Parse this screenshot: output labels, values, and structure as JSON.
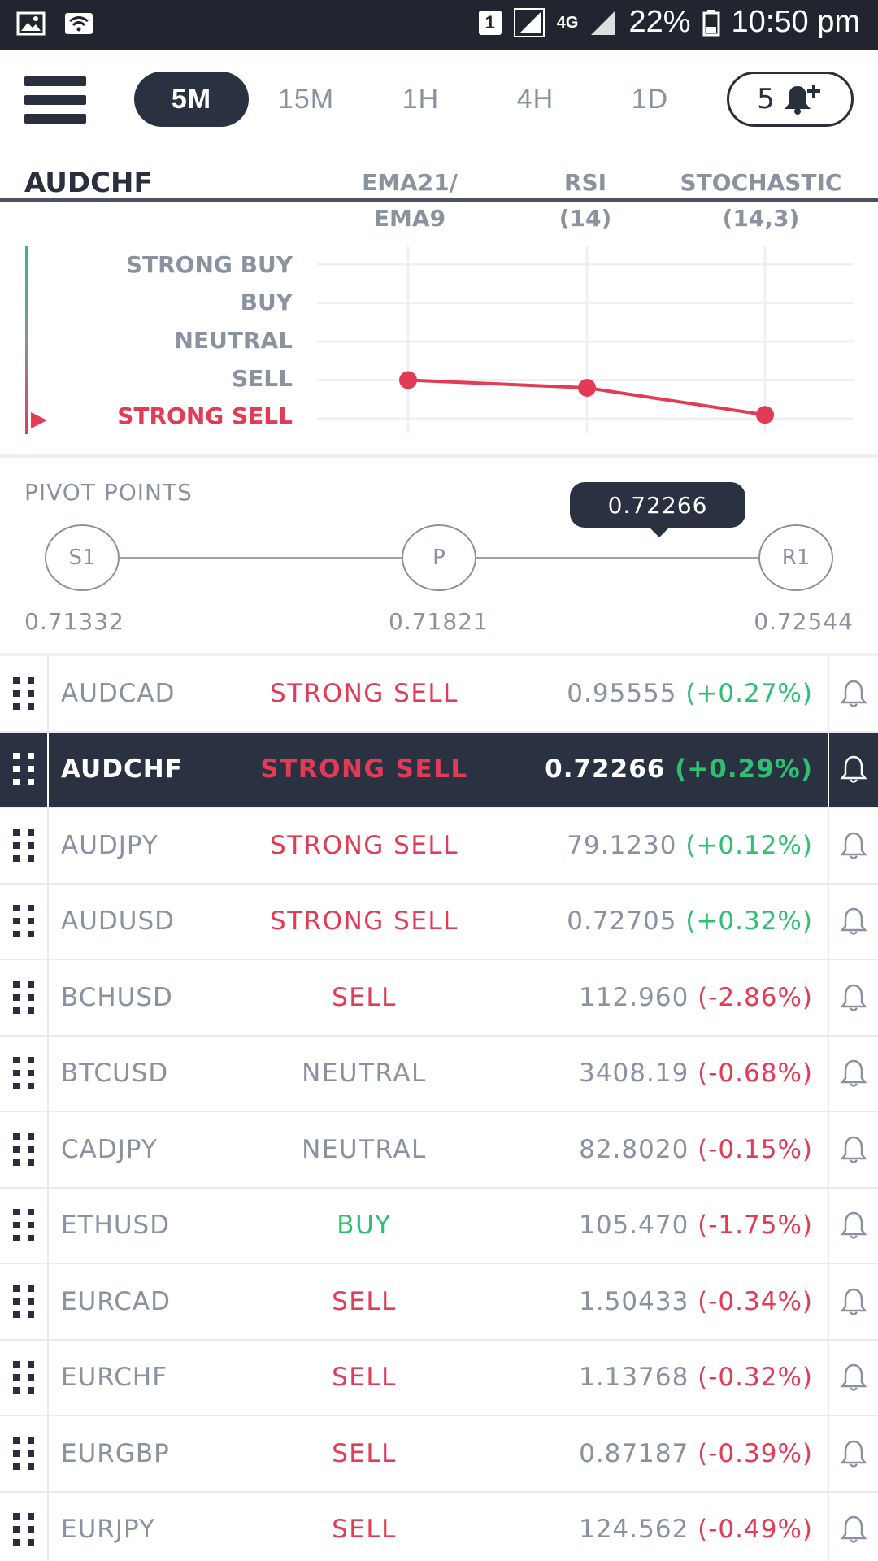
{
  "status_bar": {
    "sim_badge": "1",
    "network": "4G",
    "battery": "22%",
    "time": "10:50 pm"
  },
  "toolbar": {
    "tabs": [
      {
        "label": "5M",
        "active": true
      },
      {
        "label": "15M",
        "active": false
      },
      {
        "label": "1H",
        "active": false
      },
      {
        "label": "4H",
        "active": false
      },
      {
        "label": "1D",
        "active": false
      }
    ],
    "alert_count": "5"
  },
  "summary": {
    "symbol": "AUDCHF",
    "columns": [
      {
        "line1": "EMA21/",
        "line2": "EMA9"
      },
      {
        "line1": "RSI",
        "line2": "(14)"
      },
      {
        "line1": "STOCHASTIC",
        "line2": "(14,3)"
      }
    ],
    "rating_labels": [
      "STRONG BUY",
      "BUY",
      "NEUTRAL",
      "SELL",
      "STRONG SELL"
    ],
    "current_rating": "STRONG SELL"
  },
  "chart_data": {
    "type": "line",
    "categories": [
      "EMA21/EMA9",
      "RSI (14)",
      "STOCHASTIC (14,3)"
    ],
    "y_scale": [
      "STRONG SELL",
      "SELL",
      "NEUTRAL",
      "BUY",
      "STRONG BUY"
    ],
    "series": [
      {
        "values": [
          1.0,
          0.8,
          0.1
        ]
      }
    ],
    "ylim": [
      0,
      4
    ],
    "grid": true
  },
  "pivot": {
    "title": "PIVOT POINTS",
    "nodes": [
      {
        "label": "S1",
        "value": "0.71332"
      },
      {
        "label": "P",
        "value": "0.71821"
      },
      {
        "label": "R1",
        "value": "0.72544"
      }
    ],
    "current_price": "0.72266"
  },
  "watchlist": [
    {
      "symbol": "AUDCAD",
      "signal": "STRONG SELL",
      "signal_type": "strong-sell",
      "price": "0.95555",
      "change": "(+0.27%)",
      "dir": "up",
      "selected": false
    },
    {
      "symbol": "AUDCHF",
      "signal": "STRONG SELL",
      "signal_type": "strong-sell",
      "price": "0.72266",
      "change": "(+0.29%)",
      "dir": "up",
      "selected": true
    },
    {
      "symbol": "AUDJPY",
      "signal": "STRONG SELL",
      "signal_type": "strong-sell",
      "price": "79.1230",
      "change": "(+0.12%)",
      "dir": "up",
      "selected": false
    },
    {
      "symbol": "AUDUSD",
      "signal": "STRONG SELL",
      "signal_type": "strong-sell",
      "price": "0.72705",
      "change": "(+0.32%)",
      "dir": "up",
      "selected": false
    },
    {
      "symbol": "BCHUSD",
      "signal": "SELL",
      "signal_type": "sell",
      "price": "112.960",
      "change": "(-2.86%)",
      "dir": "down",
      "selected": false
    },
    {
      "symbol": "BTCUSD",
      "signal": "NEUTRAL",
      "signal_type": "neutral",
      "price": "3408.19",
      "change": "(-0.68%)",
      "dir": "down",
      "selected": false
    },
    {
      "symbol": "CADJPY",
      "signal": "NEUTRAL",
      "signal_type": "neutral",
      "price": "82.8020",
      "change": "(-0.15%)",
      "dir": "down",
      "selected": false
    },
    {
      "symbol": "ETHUSD",
      "signal": "BUY",
      "signal_type": "buy",
      "price": "105.470",
      "change": "(-1.75%)",
      "dir": "down",
      "selected": false
    },
    {
      "symbol": "EURCAD",
      "signal": "SELL",
      "signal_type": "sell",
      "price": "1.50433",
      "change": "(-0.34%)",
      "dir": "down",
      "selected": false
    },
    {
      "symbol": "EURCHF",
      "signal": "SELL",
      "signal_type": "sell",
      "price": "1.13768",
      "change": "(-0.32%)",
      "dir": "down",
      "selected": false
    },
    {
      "symbol": "EURGBP",
      "signal": "SELL",
      "signal_type": "sell",
      "price": "0.87187",
      "change": "(-0.39%)",
      "dir": "down",
      "selected": false
    },
    {
      "symbol": "EURJPY",
      "signal": "SELL",
      "signal_type": "sell",
      "price": "124.562",
      "change": "(-0.49%)",
      "dir": "down",
      "selected": false
    }
  ],
  "colors": {
    "dark": "#2a3140",
    "sell": "#e23b55",
    "buy": "#2fbf71",
    "muted": "#8a92a0"
  }
}
